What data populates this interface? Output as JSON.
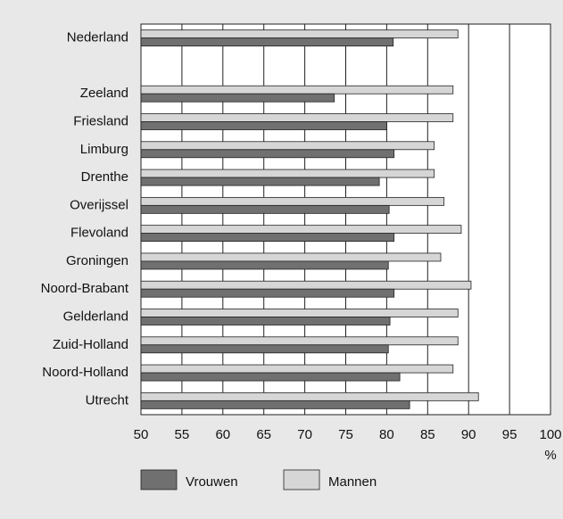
{
  "chart_data": {
    "type": "hbar",
    "x_label": "%",
    "categories": [
      "Nederland",
      null,
      "Zeeland",
      "Friesland",
      "Limburg",
      "Drenthe",
      "Overijssel",
      "Flevoland",
      "Groningen",
      "Noord-Brabant",
      "Gelderland",
      "Zuid-Holland",
      "Noord-Holland",
      "Utrecht"
    ],
    "series": [
      {
        "name": "Vrouwen",
        "color": "#707070",
        "values": [
          80.8,
          null,
          73.6,
          80.0,
          80.9,
          79.1,
          80.3,
          80.9,
          80.2,
          80.9,
          80.4,
          80.2,
          81.6,
          82.8
        ]
      },
      {
        "name": "Mannen",
        "color": "#d6d6d6",
        "values": [
          88.7,
          null,
          88.1,
          88.1,
          85.8,
          85.8,
          87.0,
          89.1,
          86.6,
          90.3,
          88.7,
          88.7,
          88.1,
          91.2
        ]
      }
    ],
    "xlim": [
      50,
      100
    ],
    "xticks": [
      50,
      55,
      60,
      65,
      70,
      75,
      80,
      85,
      90,
      95,
      100
    ],
    "grid": true
  }
}
